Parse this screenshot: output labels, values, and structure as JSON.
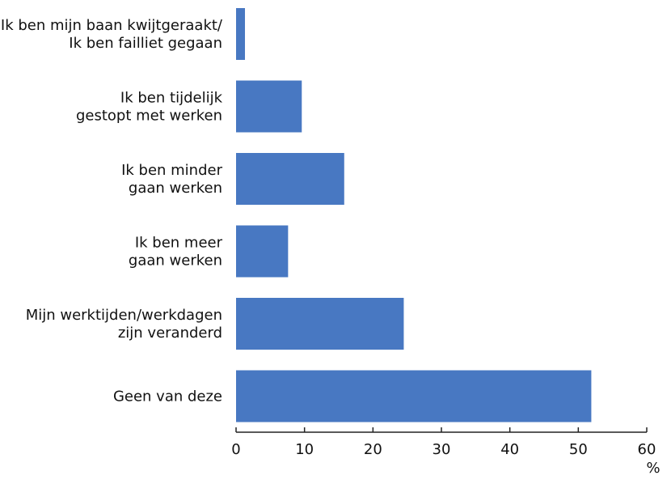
{
  "chart_data": {
    "type": "bar",
    "orientation": "horizontal",
    "categories": [
      [
        "Ik ben mijn baan kwijtgeraakt/",
        "Ik ben failliet gegaan"
      ],
      [
        "Ik ben tijdelijk",
        "gestopt met werken"
      ],
      [
        "Ik ben minder",
        "gaan werken"
      ],
      [
        "Ik ben meer",
        "gaan werken"
      ],
      [
        "Mijn werktijden/werkdagen",
        "zijn veranderd"
      ],
      [
        "Geen van deze"
      ]
    ],
    "values": [
      1.3,
      9.6,
      15.8,
      7.6,
      24.5,
      51.9
    ],
    "xlim": [
      0,
      60
    ],
    "ticks": [
      0,
      10,
      20,
      30,
      40,
      50,
      60
    ],
    "tick_labels": [
      "0",
      "10",
      "20",
      "30",
      "40",
      "50",
      "60"
    ],
    "unit_label": "%",
    "title": "",
    "xlabel": "%",
    "ylabel": "",
    "grid": false,
    "legend": "none",
    "bar_color": "#4878c2",
    "axis_color": "#222222"
  }
}
